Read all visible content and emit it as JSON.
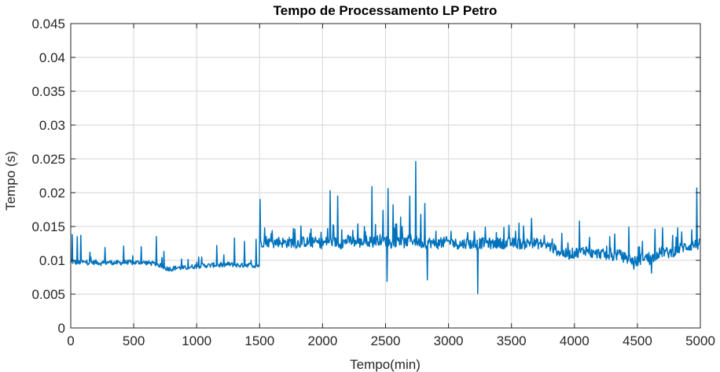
{
  "chart_data": {
    "type": "line",
    "title": "Tempo de Processamento LP Petro",
    "xlabel": "Tempo(min)",
    "ylabel": "Tempo (s)",
    "xlim": [
      0,
      5000
    ],
    "ylim": [
      0,
      0.045
    ],
    "x_ticks": [
      0,
      500,
      1000,
      1500,
      2000,
      2500,
      3000,
      3500,
      4000,
      4500,
      5000
    ],
    "x_tick_labels": [
      "0",
      "500",
      "1000",
      "1500",
      "2000",
      "2500",
      "3000",
      "3500",
      "4000",
      "4500",
      "5000"
    ],
    "y_ticks": [
      0,
      0.005,
      0.01,
      0.015,
      0.02,
      0.025,
      0.03,
      0.035,
      0.04,
      0.045
    ],
    "y_tick_labels": [
      "0",
      "0.005",
      "0.01",
      "0.015",
      "0.02",
      "0.025",
      "0.03",
      "0.035",
      "0.04",
      "0.045"
    ],
    "grid": true,
    "line_color": "#0072BD",
    "series": [
      {
        "x": [
          0,
          20,
          50,
          100,
          150,
          200,
          250,
          300,
          350,
          400,
          450,
          500,
          550,
          600,
          650,
          700,
          750,
          800,
          850,
          900,
          950,
          1000,
          1050,
          1100,
          1150,
          1200,
          1250,
          1300,
          1350,
          1400,
          1450,
          1499,
          1500,
          1550,
          1600,
          1650,
          1700,
          1750,
          1800,
          1850,
          1900,
          1950,
          2000,
          2050,
          2100,
          2150,
          2200,
          2250,
          2300,
          2350,
          2400,
          2450,
          2500,
          2550,
          2600,
          2650,
          2700,
          2750,
          2800,
          2850,
          2900,
          2950,
          3000,
          3050,
          3100,
          3150,
          3200,
          3250,
          3300,
          3350,
          3400,
          3450,
          3500,
          3550,
          3600,
          3650,
          3700,
          3750,
          3800,
          3850,
          3900,
          3950,
          4000,
          4050,
          4100,
          4150,
          4200,
          4250,
          4300,
          4350,
          4400,
          4450,
          4500,
          4550,
          4600,
          4650,
          4700,
          4750,
          4800,
          4850,
          4900,
          4950,
          5000
        ],
        "y": [
          0.0095,
          0.0098,
          0.0096,
          0.0097,
          0.0096,
          0.0097,
          0.0095,
          0.0097,
          0.0096,
          0.0096,
          0.0097,
          0.0096,
          0.0097,
          0.0096,
          0.0095,
          0.0093,
          0.0088,
          0.0087,
          0.0089,
          0.0088,
          0.009,
          0.0091,
          0.0092,
          0.0092,
          0.0093,
          0.0092,
          0.0094,
          0.0093,
          0.0092,
          0.0093,
          0.0092,
          0.0092,
          0.0125,
          0.0128,
          0.0124,
          0.0127,
          0.0125,
          0.0126,
          0.0124,
          0.0127,
          0.0125,
          0.0126,
          0.0124,
          0.0128,
          0.0126,
          0.0124,
          0.0129,
          0.0127,
          0.0125,
          0.0128,
          0.0126,
          0.013,
          0.0128,
          0.0124,
          0.0129,
          0.0125,
          0.013,
          0.0127,
          0.0124,
          0.0126,
          0.0123,
          0.0125,
          0.0127,
          0.0124,
          0.0123,
          0.0125,
          0.0122,
          0.0124,
          0.0126,
          0.0123,
          0.0125,
          0.0124,
          0.0125,
          0.0124,
          0.0123,
          0.0126,
          0.0124,
          0.0123,
          0.012,
          0.0115,
          0.011,
          0.0108,
          0.011,
          0.0112,
          0.0115,
          0.0108,
          0.011,
          0.0107,
          0.0105,
          0.0108,
          0.0103,
          0.01,
          0.0097,
          0.0105,
          0.01,
          0.0108,
          0.0112,
          0.011,
          0.0113,
          0.0118,
          0.012,
          0.0122,
          0.0123
        ],
        "spikes": [
          [
            10,
            0.0138
          ],
          [
            50,
            0.0135
          ],
          [
            80,
            0.0137
          ],
          [
            150,
            0.0112
          ],
          [
            270,
            0.0119
          ],
          [
            420,
            0.0121
          ],
          [
            560,
            0.012
          ],
          [
            680,
            0.0135
          ],
          [
            740,
            0.0113
          ],
          [
            880,
            0.0102
          ],
          [
            1040,
            0.0105
          ],
          [
            1160,
            0.0122
          ],
          [
            1300,
            0.0133
          ],
          [
            1380,
            0.0128
          ],
          [
            1470,
            0.0131
          ],
          [
            1502,
            0.019
          ],
          [
            1540,
            0.0148
          ],
          [
            1600,
            0.0144
          ],
          [
            1780,
            0.0146
          ],
          [
            1900,
            0.014
          ],
          [
            2040,
            0.0147
          ],
          [
            2060,
            0.0203
          ],
          [
            2120,
            0.0195
          ],
          [
            2150,
            0.0145
          ],
          [
            2280,
            0.0154
          ],
          [
            2330,
            0.015
          ],
          [
            2390,
            0.0209
          ],
          [
            2420,
            0.0153
          ],
          [
            2480,
            0.0174
          ],
          [
            2520,
            0.0206
          ],
          [
            2560,
            0.0182
          ],
          [
            2620,
            0.0164
          ],
          [
            2690,
            0.0195
          ],
          [
            2740,
            0.0246
          ],
          [
            2780,
            0.0168
          ],
          [
            2810,
            0.0184
          ],
          [
            2900,
            0.0143
          ],
          [
            3020,
            0.0143
          ],
          [
            3150,
            0.0141
          ],
          [
            3290,
            0.0149
          ],
          [
            3380,
            0.0141
          ],
          [
            3480,
            0.0152
          ],
          [
            3560,
            0.0155
          ],
          [
            3660,
            0.0162
          ],
          [
            3760,
            0.0137
          ],
          [
            3900,
            0.014
          ],
          [
            4040,
            0.0158
          ],
          [
            4120,
            0.0134
          ],
          [
            4280,
            0.0135
          ],
          [
            4320,
            0.0139
          ],
          [
            4430,
            0.0149
          ],
          [
            4540,
            0.0128
          ],
          [
            4640,
            0.0146
          ],
          [
            4700,
            0.0148
          ],
          [
            4780,
            0.0137
          ],
          [
            4820,
            0.0148
          ],
          [
            4850,
            0.0142
          ],
          [
            4930,
            0.0145
          ],
          [
            4970,
            0.0207
          ]
        ],
        "dips": [
          [
            2510,
            0.0069
          ],
          [
            2830,
            0.0071
          ],
          [
            3230,
            0.0051
          ],
          [
            4470,
            0.0087
          ],
          [
            4610,
            0.0081
          ]
        ]
      }
    ]
  }
}
